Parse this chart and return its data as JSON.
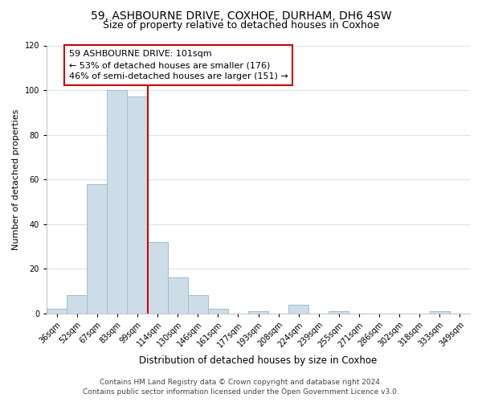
{
  "title1": "59, ASHBOURNE DRIVE, COXHOE, DURHAM, DH6 4SW",
  "title2": "Size of property relative to detached houses in Coxhoe",
  "xlabel": "Distribution of detached houses by size in Coxhoe",
  "ylabel": "Number of detached properties",
  "bar_labels": [
    "36sqm",
    "52sqm",
    "67sqm",
    "83sqm",
    "99sqm",
    "114sqm",
    "130sqm",
    "146sqm",
    "161sqm",
    "177sqm",
    "193sqm",
    "208sqm",
    "224sqm",
    "239sqm",
    "255sqm",
    "271sqm",
    "286sqm",
    "302sqm",
    "318sqm",
    "333sqm",
    "349sqm"
  ],
  "bar_values": [
    2,
    8,
    58,
    100,
    97,
    32,
    16,
    8,
    2,
    0,
    1,
    0,
    4,
    0,
    1,
    0,
    0,
    0,
    0,
    1,
    0
  ],
  "bar_color": "#ccdde8",
  "bar_edge_color": "#9dbfcf",
  "property_line_color": "#cc0000",
  "annotation_text": "59 ASHBOURNE DRIVE: 101sqm\n← 53% of detached houses are smaller (176)\n46% of semi-detached houses are larger (151) →",
  "annotation_box_color": "white",
  "annotation_box_edge_color": "#cc0000",
  "ylim": [
    0,
    120
  ],
  "yticks": [
    0,
    20,
    40,
    60,
    80,
    100,
    120
  ],
  "footer1": "Contains HM Land Registry data © Crown copyright and database right 2024.",
  "footer2": "Contains public sector information licensed under the Open Government Licence v3.0.",
  "bg_color": "white",
  "grid_color": "#d8e4ee",
  "title1_fontsize": 10,
  "title2_fontsize": 9,
  "xlabel_fontsize": 8.5,
  "ylabel_fontsize": 8,
  "tick_fontsize": 7,
  "annotation_fontsize": 8,
  "footer_fontsize": 6.5
}
